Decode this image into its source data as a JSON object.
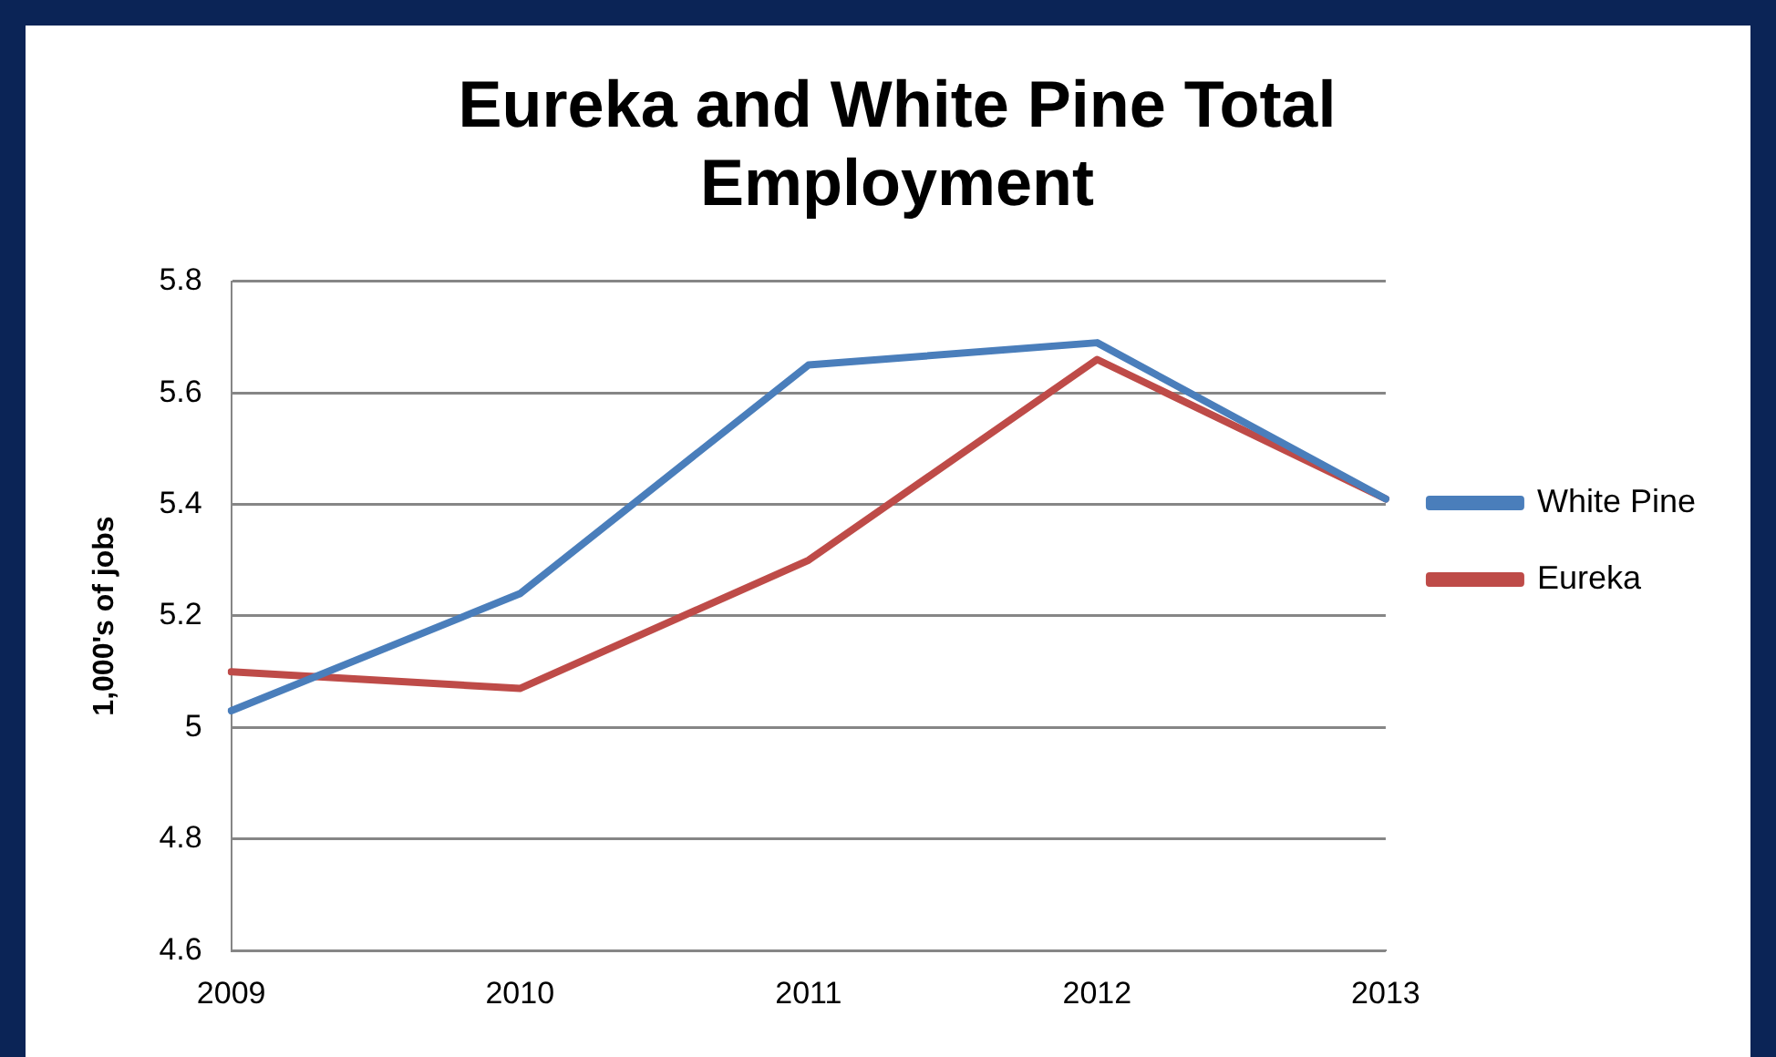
{
  "chart_data": {
    "type": "line",
    "title": "Eureka and White Pine Total Employment",
    "ylabel": "1,000's of jobs",
    "categories": [
      "2009",
      "2010",
      "2011",
      "2012",
      "2013"
    ],
    "series": [
      {
        "name": "White Pine",
        "color": "#4a7ebb",
        "values": [
          5.03,
          5.24,
          5.65,
          5.69,
          5.41
        ]
      },
      {
        "name": "Eureka",
        "color": "#be4b48",
        "values": [
          5.1,
          5.07,
          5.3,
          5.66,
          5.41
        ]
      }
    ],
    "ylim": [
      4.6,
      5.8
    ],
    "yticks": [
      4.6,
      4.8,
      5,
      5.2,
      5.4,
      5.6,
      5.8
    ],
    "grid": "y",
    "legend": "right",
    "marker": "none",
    "line_style": "solid"
  }
}
